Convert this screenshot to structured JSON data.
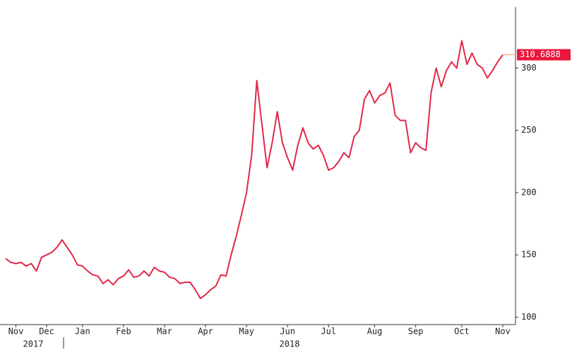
{
  "chart_data": {
    "type": "line",
    "categories": [
      null,
      null,
      "Nov",
      null,
      null,
      null,
      null,
      null,
      "Dec",
      null,
      null,
      null,
      null,
      null,
      null,
      "Jan",
      null,
      null,
      null,
      null,
      null,
      null,
      null,
      "Feb",
      null,
      null,
      null,
      null,
      null,
      null,
      null,
      "Mar",
      null,
      null,
      null,
      null,
      null,
      null,
      null,
      "Apr",
      null,
      null,
      null,
      null,
      null,
      null,
      null,
      "May",
      null,
      null,
      null,
      null,
      null,
      null,
      null,
      "Jun",
      null,
      null,
      null,
      null,
      null,
      null,
      null,
      "Jul",
      null,
      null,
      null,
      null,
      null,
      null,
      null,
      null,
      "Aug",
      null,
      null,
      null,
      null,
      null,
      null,
      null,
      "Sep",
      null,
      null,
      null,
      null,
      null,
      null,
      null,
      null,
      "Oct",
      null,
      null,
      null,
      null,
      null,
      null,
      null,
      "Nov"
    ],
    "years": [
      "2017",
      "2018"
    ],
    "series": [
      {
        "color": "#e0294a",
        "values": [
          147,
          144,
          143,
          144,
          141,
          143,
          137,
          148,
          150,
          152,
          156,
          162,
          156,
          150,
          142,
          141,
          137,
          134,
          133,
          127,
          130,
          126,
          131,
          133,
          138,
          132,
          133,
          137,
          133,
          140,
          137,
          136,
          132,
          131,
          127,
          128,
          128,
          122,
          115,
          118,
          122,
          125,
          134,
          133,
          150,
          165,
          182,
          200,
          230,
          290,
          255,
          220,
          240,
          265,
          240,
          228,
          218,
          238,
          252,
          240,
          235,
          238,
          230,
          218,
          220,
          225,
          232,
          228,
          245,
          250,
          275,
          282,
          272,
          278,
          280,
          288,
          262,
          258,
          258,
          232,
          240,
          236,
          234,
          280,
          300,
          285,
          298,
          305,
          300,
          322,
          303,
          312,
          303,
          300,
          292,
          298,
          305,
          310.6888
        ]
      }
    ],
    "ylim": [
      94,
      349
    ],
    "yticks": [
      100,
      150,
      200,
      250,
      300
    ],
    "axis_side": "right",
    "last_value_color": "#e8173b"
  }
}
